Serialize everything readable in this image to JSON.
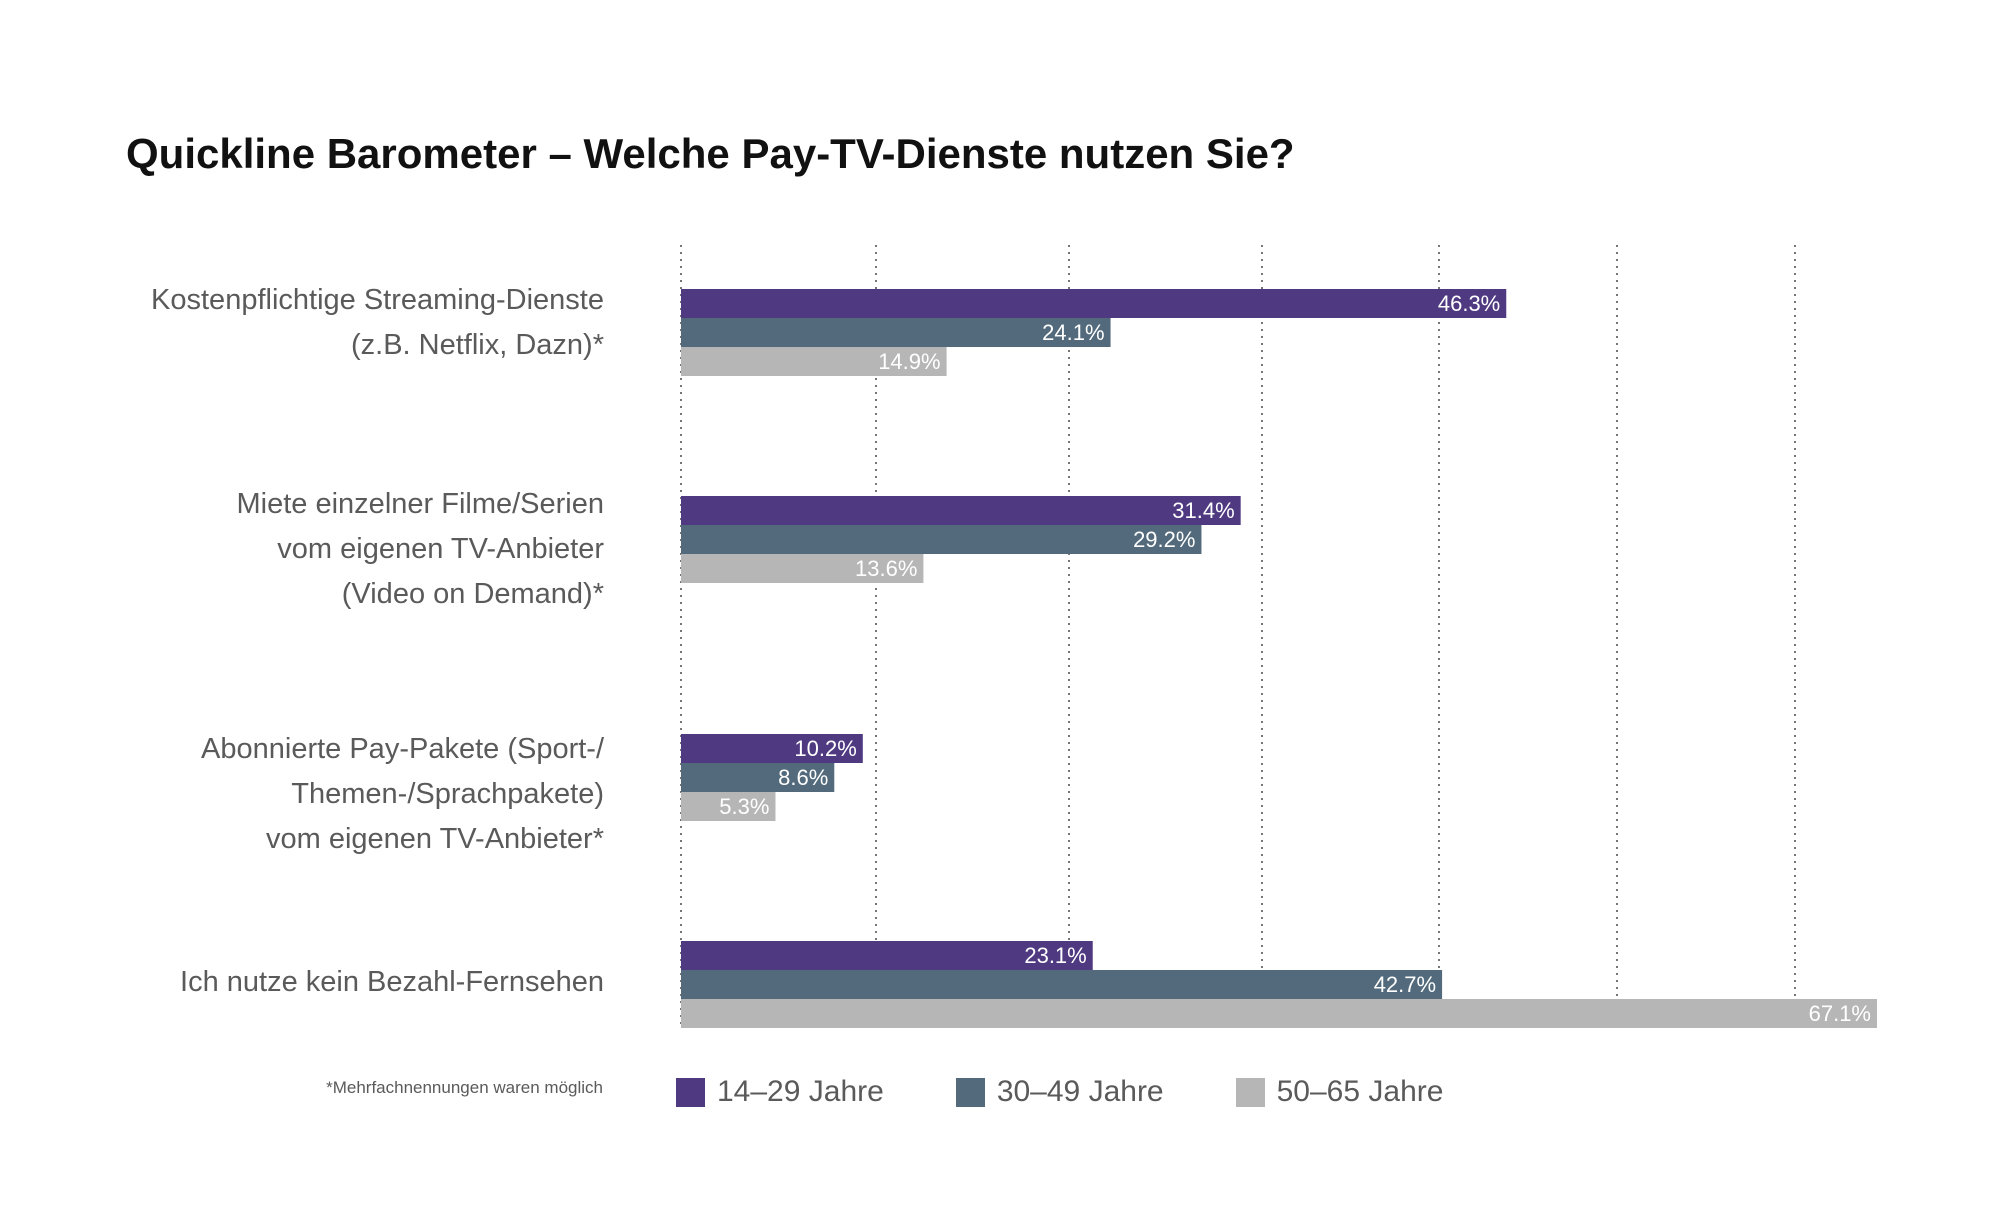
{
  "chart_data": {
    "type": "bar",
    "orientation": "horizontal",
    "title": "Quickline Barometer – Welche Pay-TV-Dienste nutzen Sie?",
    "categories": [
      [
        "Kostenpflichtige Streaming-Dienste",
        "(z.B. Netflix, Dazn)*"
      ],
      [
        "Miete einzelner Filme/Serien",
        "vom eigenen TV-Anbieter",
        "(Video on Demand)*"
      ],
      [
        "Abonnierte Pay-Pakete (Sport-/",
        "Themen-/Sprachpakete)",
        "vom eigenen TV-Anbieter*"
      ],
      [
        "Ich nutze kein Bezahl-Fernsehen"
      ]
    ],
    "series": [
      {
        "name": "14–29 Jahre",
        "color": "#4f3a82",
        "values": [
          46.3,
          31.4,
          10.2,
          23.1
        ],
        "labels": [
          "46.3%",
          "31.4%",
          "10.2%",
          "23.1%"
        ]
      },
      {
        "name": "30–49 Jahre",
        "color": "#526a7c",
        "values": [
          24.1,
          29.2,
          8.6,
          42.7
        ],
        "labels": [
          "24.1%",
          "29.2%",
          "8.6%",
          "42.7%"
        ]
      },
      {
        "name": "50–65 Jahre",
        "color": "#b6b6b6",
        "values": [
          14.9,
          13.6,
          5.3,
          67.1
        ],
        "labels": [
          "14.9%",
          "13.6%",
          "5.3%",
          "67.1%"
        ]
      }
    ],
    "xlim": [
      0,
      67.1
    ],
    "grid": true,
    "legend": "bottom",
    "footnote": "*Mehrfachnennungen waren möglich"
  }
}
